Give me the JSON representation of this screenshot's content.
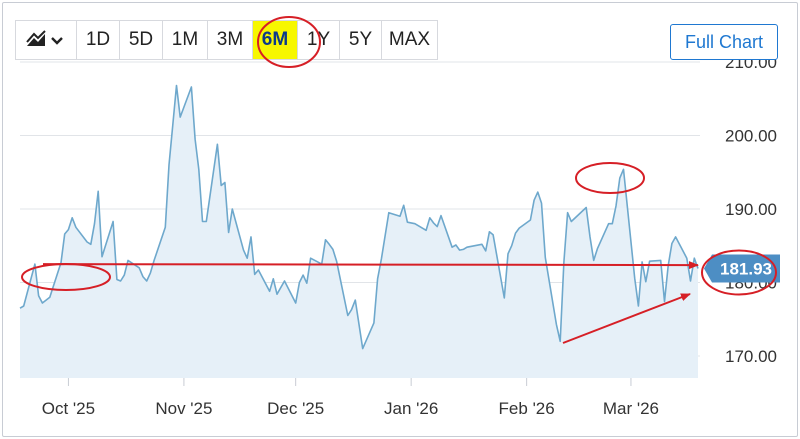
{
  "toolbar": {
    "chart_type_icon": "area-chart-icon",
    "ranges": [
      "1D",
      "5D",
      "1M",
      "3M",
      "6M",
      "1Y",
      "5Y",
      "MAX"
    ],
    "active_range": "6M",
    "full_chart_label": "Full Chart"
  },
  "colors": {
    "line": "#6ea8cc",
    "area": "#e6f0f8",
    "grid": "#e1e4e8",
    "annotation": "#d61f26",
    "highlight": "#f7f700",
    "price_badge": "#4d8ec4",
    "button_accent": "#1f78d1"
  },
  "chart_data": {
    "type": "area",
    "last_price_label": "181.93",
    "y_ticks": [
      "210.00",
      "200.00",
      "190.00",
      "180.00",
      "170.00"
    ],
    "y_tick_values": [
      210,
      200,
      190,
      180,
      170
    ],
    "ylim": [
      167,
      210
    ],
    "x_ticks": [
      "Oct '25",
      "Nov '25",
      "Dec '25",
      "Jan '26",
      "Feb '26",
      "Mar '26"
    ],
    "x_tick_dates": [
      "2025-10-01",
      "2025-11-01",
      "2025-12-01",
      "2026-01-01",
      "2026-02-01",
      "2026-03-01"
    ],
    "xlim": [
      "2025-09-18",
      "2026-03-19"
    ],
    "series": [
      {
        "values": [
          [
            "2025-09-18",
            176.5
          ],
          [
            "2025-09-19",
            176.8
          ],
          [
            "2025-09-22",
            182.5
          ],
          [
            "2025-09-23",
            178.2
          ],
          [
            "2025-09-24",
            177.2
          ],
          [
            "2025-09-25",
            177.6
          ],
          [
            "2025-09-26",
            178.0
          ],
          [
            "2025-09-29",
            182.7
          ],
          [
            "2025-09-30",
            186.6
          ],
          [
            "2025-10-01",
            187.2
          ],
          [
            "2025-10-02",
            188.8
          ],
          [
            "2025-10-03",
            187.5
          ],
          [
            "2025-10-06",
            185.5
          ],
          [
            "2025-10-07",
            185.2
          ],
          [
            "2025-10-08",
            188.0
          ],
          [
            "2025-10-09",
            192.4
          ],
          [
            "2025-10-10",
            183.5
          ],
          [
            "2025-10-13",
            188.3
          ],
          [
            "2025-10-14",
            180.4
          ],
          [
            "2025-10-15",
            180.2
          ],
          [
            "2025-10-16",
            181.0
          ],
          [
            "2025-10-17",
            183.0
          ],
          [
            "2025-10-20",
            182.0
          ],
          [
            "2025-10-21",
            180.8
          ],
          [
            "2025-10-22",
            180.2
          ],
          [
            "2025-10-23",
            181.3
          ],
          [
            "2025-10-24",
            183.0
          ],
          [
            "2025-10-27",
            187.5
          ],
          [
            "2025-10-28",
            196.0
          ],
          [
            "2025-10-29",
            201.3
          ],
          [
            "2025-10-30",
            206.8
          ],
          [
            "2025-10-31",
            202.5
          ],
          [
            "2025-11-03",
            206.6
          ],
          [
            "2025-11-04",
            199.5
          ],
          [
            "2025-11-05",
            195.4
          ],
          [
            "2025-11-06",
            188.3
          ],
          [
            "2025-11-07",
            188.3
          ],
          [
            "2025-11-10",
            198.8
          ],
          [
            "2025-11-11",
            193.2
          ],
          [
            "2025-11-12",
            193.6
          ],
          [
            "2025-11-13",
            186.8
          ],
          [
            "2025-11-14",
            190.0
          ],
          [
            "2025-11-17",
            184.4
          ],
          [
            "2025-11-18",
            183.3
          ],
          [
            "2025-11-19",
            186.2
          ],
          [
            "2025-11-20",
            181.1
          ],
          [
            "2025-11-21",
            181.7
          ],
          [
            "2025-11-24",
            178.8
          ],
          [
            "2025-11-25",
            180.5
          ],
          [
            "2025-11-26",
            178.4
          ],
          [
            "2025-11-28",
            180.2
          ],
          [
            "2025-12-01",
            177.2
          ],
          [
            "2025-12-02",
            180.0
          ],
          [
            "2025-12-03",
            181.0
          ],
          [
            "2025-12-04",
            179.9
          ],
          [
            "2025-12-05",
            183.3
          ],
          [
            "2025-12-08",
            182.5
          ],
          [
            "2025-12-09",
            185.8
          ],
          [
            "2025-12-10",
            185.2
          ],
          [
            "2025-12-11",
            184.5
          ],
          [
            "2025-12-12",
            182.9
          ],
          [
            "2025-12-15",
            175.5
          ],
          [
            "2025-12-16",
            176.3
          ],
          [
            "2025-12-17",
            177.6
          ],
          [
            "2025-12-18",
            174.3
          ],
          [
            "2025-12-19",
            171.0
          ],
          [
            "2025-12-22",
            174.5
          ],
          [
            "2025-12-23",
            180.5
          ],
          [
            "2025-12-24",
            183.2
          ],
          [
            "2025-12-26",
            189.5
          ],
          [
            "2025-12-29",
            189.0
          ],
          [
            "2025-12-30",
            190.5
          ],
          [
            "2025-12-31",
            188.2
          ],
          [
            "2026-01-02",
            188.0
          ],
          [
            "2026-01-05",
            187.1
          ],
          [
            "2026-01-06",
            188.8
          ],
          [
            "2026-01-07",
            188.1
          ],
          [
            "2026-01-08",
            187.6
          ],
          [
            "2026-01-09",
            189.1
          ],
          [
            "2026-01-12",
            184.8
          ],
          [
            "2026-01-13",
            185.1
          ],
          [
            "2026-01-14",
            184.4
          ],
          [
            "2026-01-15",
            184.5
          ],
          [
            "2026-01-16",
            184.8
          ],
          [
            "2026-01-20",
            185.2
          ],
          [
            "2026-01-21",
            184.3
          ],
          [
            "2026-01-22",
            186.9
          ],
          [
            "2026-01-23",
            186.5
          ],
          [
            "2026-01-26",
            177.9
          ],
          [
            "2026-01-27",
            183.9
          ],
          [
            "2026-01-28",
            185.0
          ],
          [
            "2026-01-29",
            186.7
          ],
          [
            "2026-01-30",
            187.4
          ],
          [
            "2026-02-02",
            188.5
          ],
          [
            "2026-02-03",
            191.2
          ],
          [
            "2026-02-04",
            192.3
          ],
          [
            "2026-02-05",
            190.8
          ],
          [
            "2026-02-06",
            183.4
          ],
          [
            "2026-02-09",
            174.3
          ],
          [
            "2026-02-10",
            172.0
          ],
          [
            "2026-02-11",
            182.8
          ],
          [
            "2026-02-12",
            189.5
          ],
          [
            "2026-02-13",
            188.3
          ],
          [
            "2026-02-17",
            190.2
          ],
          [
            "2026-02-18",
            186.2
          ],
          [
            "2026-02-19",
            183.0
          ],
          [
            "2026-02-20",
            184.6
          ],
          [
            "2026-02-23",
            188.0
          ],
          [
            "2026-02-24",
            188.0
          ],
          [
            "2026-02-25",
            190.4
          ],
          [
            "2026-02-26",
            194.2
          ],
          [
            "2026-02-27",
            195.4
          ],
          [
            "2026-03-02",
            180.6
          ],
          [
            "2026-03-03",
            176.8
          ],
          [
            "2026-03-04",
            182.8
          ],
          [
            "2026-03-05",
            180.1
          ],
          [
            "2026-03-06",
            182.9
          ],
          [
            "2026-03-09",
            183.0
          ],
          [
            "2026-03-10",
            177.4
          ],
          [
            "2026-03-11",
            182.3
          ],
          [
            "2026-03-12",
            185.3
          ],
          [
            "2026-03-13",
            186.2
          ],
          [
            "2026-03-16",
            183.3
          ],
          [
            "2026-03-17",
            180.2
          ],
          [
            "2026-03-18",
            183.3
          ],
          [
            "2026-03-19",
            181.9
          ]
        ]
      }
    ],
    "annotations": {
      "horizontal_line_value": 182.5,
      "highlighted_range": "6M"
    },
    "grid": true
  }
}
